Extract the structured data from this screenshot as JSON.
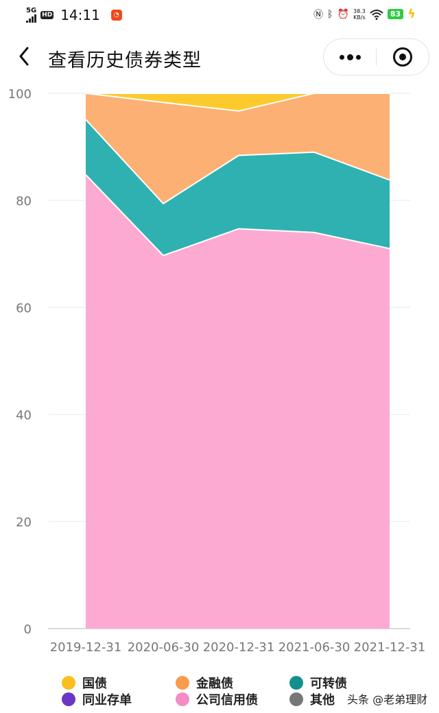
{
  "status_bar": {
    "network": "5G",
    "hd": "HD",
    "time": "14:11",
    "speed_value": "38.3",
    "speed_unit": "KB/s",
    "battery": "83"
  },
  "nav": {
    "title": "查看历史债券类型",
    "back_icon": "chevron-left-icon",
    "more_icon": "more-dots-icon",
    "close_icon": "target-circle-icon"
  },
  "chart_data": {
    "type": "area",
    "stacked": true,
    "title": "",
    "xlabel": "",
    "ylabel": "",
    "x": [
      "2019-12-31",
      "2020-06-30",
      "2020-12-31",
      "2021-06-30",
      "2021-12-31"
    ],
    "ylim": [
      0,
      100
    ],
    "yticks": [
      0,
      20,
      40,
      60,
      80,
      100
    ],
    "grid": true,
    "series": [
      {
        "name": "公司信用债",
        "color": "#fdaad2",
        "values": [
          84.8,
          69.7,
          74.7,
          74.0,
          71.0
        ]
      },
      {
        "name": "可转债",
        "color": "#2fb1b1",
        "values": [
          10.3,
          9.7,
          13.7,
          15.0,
          12.8
        ]
      },
      {
        "name": "金融债",
        "color": "#fdb073",
        "values": [
          4.9,
          18.9,
          8.3,
          11.0,
          16.2
        ]
      },
      {
        "name": "国债",
        "color": "#fdca2d",
        "values": [
          0.0,
          1.7,
          3.3,
          0.0,
          0.0
        ]
      },
      {
        "name": "同业存单",
        "color": "#6a36c6",
        "values": [
          0,
          0,
          0,
          0,
          0
        ]
      },
      {
        "name": "其他",
        "color": "#777777",
        "values": [
          0,
          0,
          0,
          0,
          0
        ]
      }
    ]
  },
  "legend": {
    "items": [
      {
        "label": "国债",
        "color": "#fdbd1e"
      },
      {
        "label": "金融债",
        "color": "#fb9b4b"
      },
      {
        "label": "可转债",
        "color": "#138f8f"
      },
      {
        "label": "同业存单",
        "color": "#6a36c6"
      },
      {
        "label": "公司信用债",
        "color": "#f58cc3"
      },
      {
        "label": "其他",
        "color": "#777777"
      }
    ]
  },
  "watermark": "头条 @老弟理财"
}
